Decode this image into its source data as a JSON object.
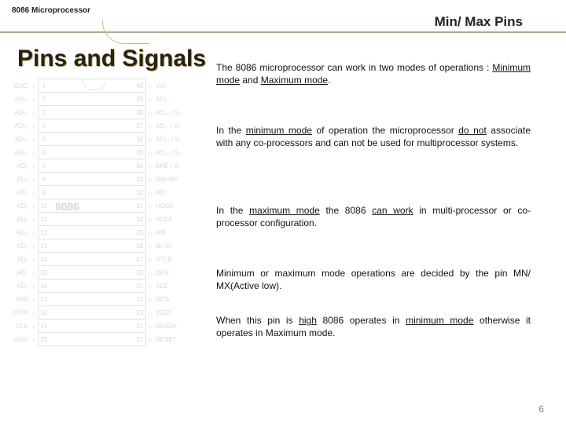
{
  "header": {
    "label": "8086 Microprocessor",
    "title": "Min/ Max Pins"
  },
  "main_heading": "Pins and Signals",
  "paragraphs": {
    "p1_a": "The 8086 microprocessor can work in two modes of  operations : ",
    "p1_u1": "Minimum mode",
    "p1_b": " and ",
    "p1_u2": "Maximum mode",
    "p1_c": ".",
    "p2_a": "In the ",
    "p2_u1": "minimum mode",
    "p2_b": " of operation the microprocessor ",
    "p2_u2": "do not",
    "p2_c": " associate with any co-processors  and can not be used for multiprocessor  systems.",
    "p3_a": "In the ",
    "p3_u1": "maximum mode",
    "p3_b": " the 8086 ",
    "p3_u2": "can work",
    "p3_c": " in multi-processor or co-processor configuration.",
    "p4": "Minimum  or maximum mode operations are decided by the pin MN/ MX(Active low).",
    "p5_a": "When this pin is ",
    "p5_u1": "high",
    "p5_b": " 8086 operates in ",
    "p5_u2": "minimum mode",
    "p5_c": "  otherwise it operates in Maximum mode."
  },
  "pinout": {
    "chip": "8086",
    "left_labels": [
      "GND",
      "AD₁₄",
      "AD₁₃",
      "AD₁₂",
      "AD₁₁",
      "AD₁₀",
      "AD₉",
      "AD₈",
      "AD₇",
      "AD₆",
      "AD₅",
      "AD₄",
      "AD₃",
      "AD₂",
      "AD₁",
      "AD₀",
      "NMI",
      "INTR",
      "CLK",
      "GND"
    ],
    "left_nums": [
      1,
      2,
      3,
      4,
      5,
      6,
      7,
      8,
      9,
      10,
      11,
      12,
      13,
      14,
      15,
      16,
      17,
      18,
      19,
      20
    ],
    "right_nums": [
      40,
      39,
      38,
      37,
      36,
      35,
      34,
      33,
      32,
      31,
      30,
      29,
      28,
      27,
      26,
      25,
      24,
      23,
      22,
      21
    ],
    "right_labels": [
      "Vcc",
      "AD₁₅",
      "AD₁₆ / S₃",
      "AD₁₇ / S₄",
      "AD₁₈ / S₅",
      "AD₁₉ / S₆",
      "BHE / S₇",
      "MN/ MX",
      "RD",
      "HOLD",
      "HLDA",
      "WR",
      "M/ IO",
      "DT/ R",
      "DEN",
      "ALE",
      "INTA",
      "TEST",
      "READY",
      "RESET"
    ]
  },
  "page_number": "6",
  "colors": {
    "rule": "#b8a880",
    "heading_shadow": "#d9b23e",
    "faded": "#bcbcbc"
  }
}
